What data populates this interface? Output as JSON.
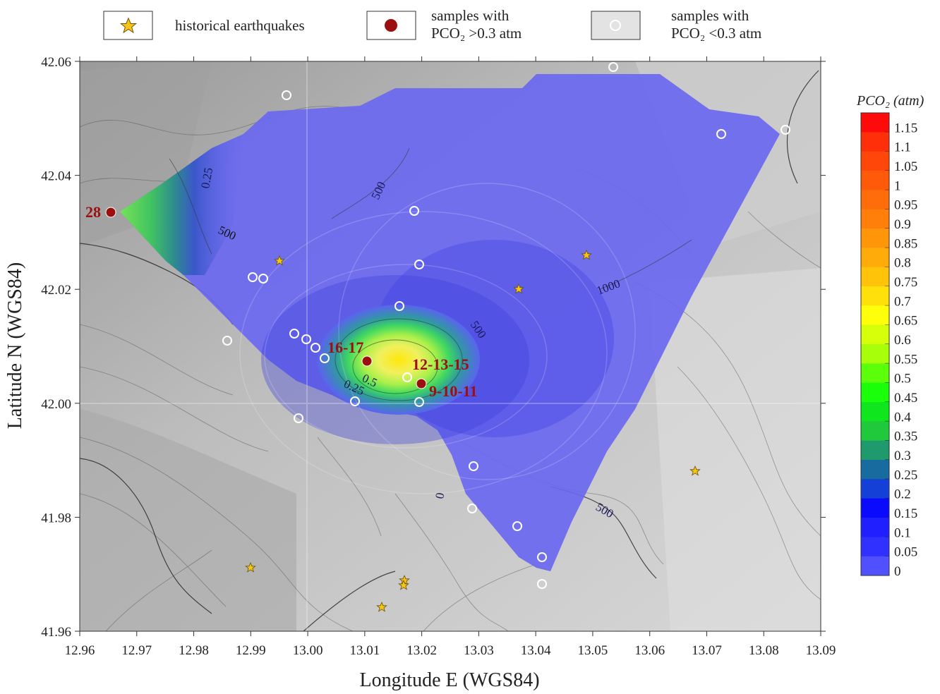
{
  "legend": {
    "earthquakes_label": "historical earthquakes",
    "high_label_line1": "samples with",
    "high_label_line2": "PCO₂ >0.3 atm",
    "low_label_line1": "samples with",
    "low_label_line2": "PCO₂ <0.3 atm"
  },
  "axes": {
    "xlabel": "Longitude E (WGS84)",
    "ylabel": "Latitude N (WGS84)",
    "x_ticks": [
      "12.96",
      "12.97",
      "12.98",
      "12.99",
      "13.00",
      "13.01",
      "13.02",
      "13.03",
      "13.04",
      "13.05",
      "13.06",
      "13.07",
      "13.08",
      "13.09"
    ],
    "y_ticks": [
      "42.06",
      "42.04",
      "42.02",
      "42.00",
      "41.98",
      "41.96"
    ]
  },
  "colorbar": {
    "title": "PCO₂ (atm)",
    "labels": [
      "1.15",
      "1.1",
      "1.05",
      "1",
      "0.95",
      "0.9",
      "0.85",
      "0.8",
      "0.75",
      "0.7",
      "0.65",
      "0.6",
      "0.55",
      "0.5",
      "0.45",
      "0.4",
      "0.35",
      "0.3",
      "0.25",
      "0.2",
      "0.15",
      "0.1",
      "0.05",
      "0"
    ],
    "colors": [
      "#ff0a0a",
      "#ff2f0a",
      "#ff470a",
      "#ff5a0a",
      "#ff6c0a",
      "#ff7f0a",
      "#ff960a",
      "#ffab0a",
      "#ffc40a",
      "#ffe00a",
      "#ffff0a",
      "#d6ff0a",
      "#a8ff0a",
      "#5cff0a",
      "#1aff0a",
      "#10e61e",
      "#20c83c",
      "#1f9a6c",
      "#176b9e",
      "#1440d8",
      "#0a0aff",
      "#1f1fff",
      "#3030ff",
      "#5050ff"
    ]
  },
  "contour_labels": {
    "c500_nw": "500",
    "c500_w": "500",
    "c500_c": "500",
    "c500_se": "500",
    "c1000": "1000",
    "c0": "0",
    "p025_nw": "0.25",
    "p05": "0.5",
    "p025_c": "0.25"
  },
  "samples": {
    "s28": "28",
    "s1617": "16-17",
    "s121315": "12-13-15",
    "s91011": "9-10-11"
  },
  "colors": {
    "plume": "#6a68f0",
    "sample_high": "#9b0f0f",
    "star": "#f5c518",
    "label_red": "#9b0f0f"
  }
}
